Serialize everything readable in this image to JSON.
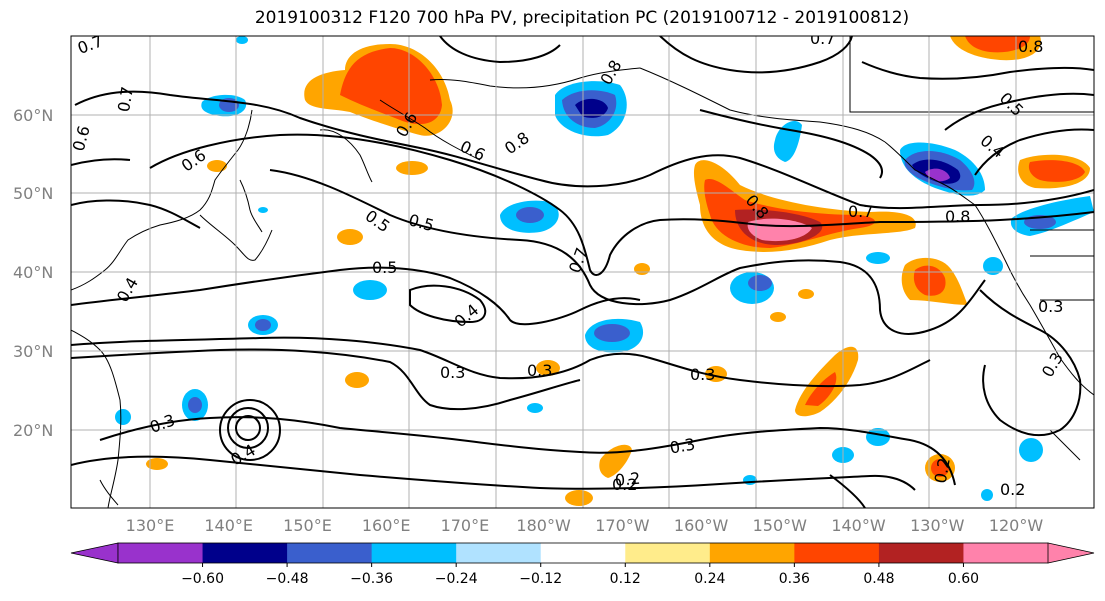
{
  "title": "2019100312 F120 700 hPa PV, precipitation PC (2019100712 - 2019100812)",
  "lat_labels": [
    "60°N",
    "50°N",
    "40°N",
    "30°N",
    "20°N"
  ],
  "lon_labels": [
    "130°E",
    "140°E",
    "150°E",
    "160°E",
    "170°E",
    "180°W",
    "170°W",
    "160°W",
    "150°W",
    "140°W",
    "130°W",
    "120°W"
  ],
  "colorbar": {
    "ticks": [
      "−0.60",
      "−0.48",
      "−0.36",
      "−0.24",
      "−0.12",
      "0.12",
      "0.24",
      "0.36",
      "0.48",
      "0.60"
    ],
    "colors": [
      "#9932cc",
      "#00008b",
      "#3a5fcd",
      "#00bfff",
      "#b0e2ff",
      "#ffffff",
      "#ffec8b",
      "#ffa500",
      "#ff4500",
      "#b22222",
      "#ff82ab"
    ]
  },
  "contour_labels": [
    "0.7",
    "0.7",
    "0.6",
    "0.6",
    "0.6",
    "0.5",
    "0.5",
    "0.5",
    "0.4",
    "0.4",
    "0.3",
    "0.3",
    "0.3",
    "0.3",
    "0.3",
    "0.2",
    "0.2",
    "0.4",
    "0.8",
    "0.8",
    "0.8",
    "0.8",
    "0.7",
    "0.7",
    "0.7",
    "0.6",
    "0.5",
    "0.4",
    "0.3",
    "0.3",
    "0.2",
    "0.2",
    "0.8"
  ]
}
